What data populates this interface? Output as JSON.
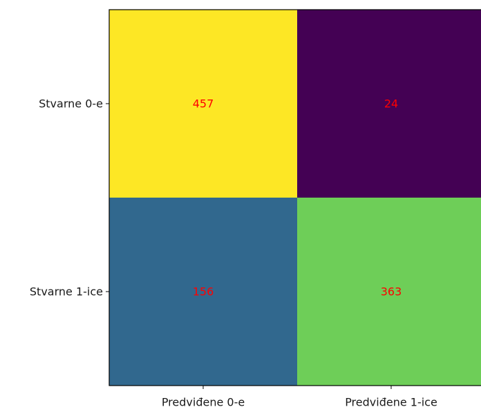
{
  "chart_data": {
    "type": "heatmap",
    "title": "",
    "xlabel": "",
    "ylabel": "",
    "x_categories": [
      "Predviđene 0-e",
      "Predviđene 1-ice"
    ],
    "y_categories": [
      "Stvarne 0-e",
      "Stvarne 1-ice"
    ],
    "values": [
      [
        457,
        24
      ],
      [
        156,
        363
      ]
    ],
    "colormap": "viridis",
    "annotation_color": "#ff0000",
    "grid": false,
    "colors": [
      [
        "#fde725",
        "#440154"
      ],
      [
        "#31688e",
        "#6ece58"
      ]
    ]
  }
}
